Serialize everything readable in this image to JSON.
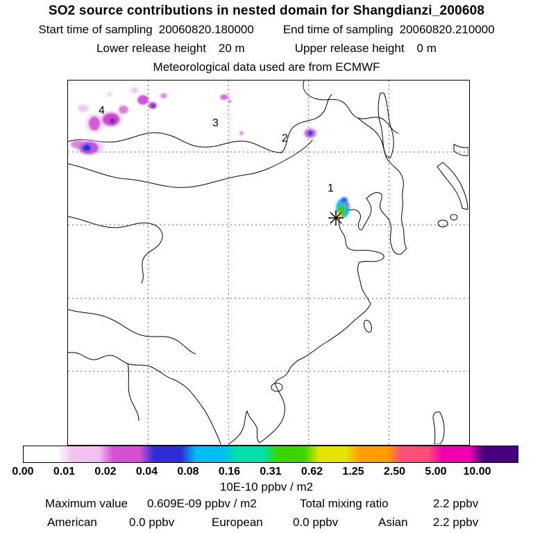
{
  "header": {
    "title": "SO2 source contributions in nested domain for Shangdianzi_200608",
    "start_label": "Start time of sampling",
    "start_value": "20060820.180000",
    "end_label": "End time of sampling",
    "end_value": "20060820.210000",
    "lower_label": "Lower release height",
    "lower_value": "20 m",
    "upper_label": "Upper release height",
    "upper_value": "0 m",
    "met_line": "Meteorological data used are from ECMWF"
  },
  "map": {
    "trajectory_labels": [
      "1",
      "2",
      "3",
      "4"
    ]
  },
  "colorbar": {
    "units": "10E-10 ppbv / m2",
    "ticks": [
      "0.00",
      "0.01",
      "0.02",
      "0.04",
      "0.08",
      "0.16",
      "0.31",
      "0.62",
      "1.25",
      "2.50",
      "5.00",
      "10.00"
    ],
    "colors": [
      "#ffffff",
      "#f0c2f0",
      "#d44fd4",
      "#2d2dd4",
      "#00bdf2",
      "#00e0a8",
      "#3fd400",
      "#e4e400",
      "#ff9e00",
      "#ff4d79",
      "#ec00b0",
      "#46007d"
    ]
  },
  "footer": {
    "max_label": "Maximum value",
    "max_value": "0.609E-09 ppbv / m2",
    "mix_label": "Total mixing ratio",
    "mix_value": "2.2 ppbv",
    "regions": [
      {
        "name": "American",
        "value": "0.0 ppbv"
      },
      {
        "name": "European",
        "value": "0.0 ppbv"
      },
      {
        "name": "Asian",
        "value": "2.2 ppbv"
      }
    ]
  },
  "chart_data": {
    "type": "heatmap",
    "title": "SO2 source contributions in nested domain for Shangdianzi_200608",
    "scale_ticks": [
      0.0,
      0.01,
      0.02,
      0.04,
      0.08,
      0.16,
      0.31,
      0.62,
      1.25,
      2.5,
      5.0,
      10.0
    ],
    "scale_units": "10E-10 ppbv / m2",
    "max_value": "0.609E-09 ppbv / m2",
    "total_mixing_ratio": "2.2 ppbv",
    "contributions": {
      "American": "0.0 ppbv",
      "European": "0.0 ppbv",
      "Asian": "2.2 ppbv"
    },
    "trajectory_point_labels": [
      "1",
      "2",
      "3",
      "4"
    ],
    "legend_position": "bottom",
    "grid": true
  }
}
